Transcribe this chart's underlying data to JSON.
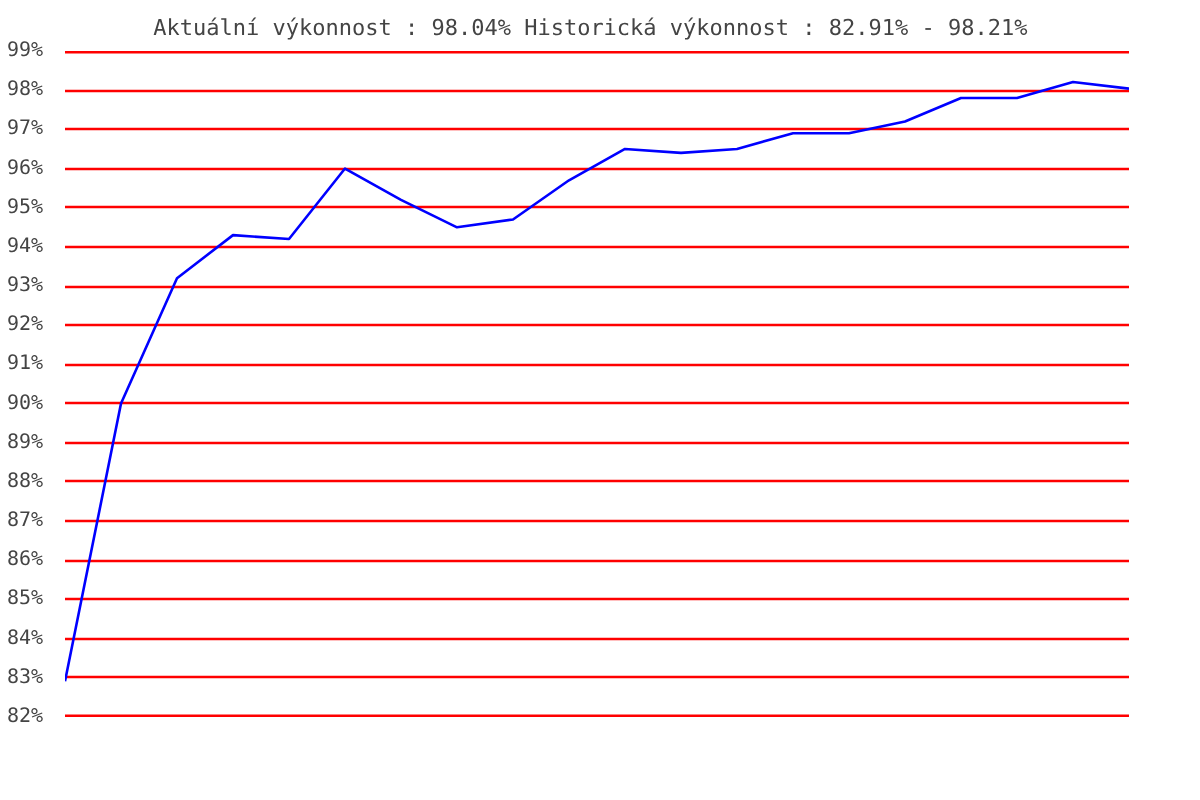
{
  "chart_data": {
    "type": "line",
    "title": "Aktuální výkonnost : 98.04%  Historická výkonnost : 82.91% - 98.21%",
    "categories": [
      null,
      null,
      null,
      null,
      null,
      null,
      null,
      null,
      null,
      null,
      null,
      null,
      null,
      null,
      null,
      null,
      null,
      null,
      null,
      null
    ],
    "series": [
      {
        "color": "#0000ff",
        "values": [
          82.91,
          90.0,
          93.2,
          94.3,
          94.2,
          96.0,
          95.2,
          94.5,
          94.7,
          95.7,
          96.5,
          96.4,
          96.5,
          96.9,
          96.9,
          97.2,
          97.8,
          97.8,
          98.21,
          98.04
        ]
      }
    ],
    "ylim": [
      82,
      99
    ],
    "yticks": [
      {
        "value": 82,
        "label": "82%"
      },
      {
        "value": 83,
        "label": "83%"
      },
      {
        "value": 84,
        "label": "84%"
      },
      {
        "value": 85,
        "label": "85%"
      },
      {
        "value": 86,
        "label": "86%"
      },
      {
        "value": 87,
        "label": "87%"
      },
      {
        "value": 88,
        "label": "88%"
      },
      {
        "value": 89,
        "label": "89%"
      },
      {
        "value": 90,
        "label": "90%"
      },
      {
        "value": 91,
        "label": "91%"
      },
      {
        "value": 92,
        "label": "92%"
      },
      {
        "value": 93,
        "label": "93%"
      },
      {
        "value": 94,
        "label": "94%"
      },
      {
        "value": 95,
        "label": "95%"
      },
      {
        "value": 96,
        "label": "96%"
      },
      {
        "value": 97,
        "label": "97%"
      },
      {
        "value": 98,
        "label": "98%"
      },
      {
        "value": 99,
        "label": "99%"
      }
    ],
    "grid": "y",
    "marker": "none",
    "line_style": "solid",
    "tick_labels": "y"
  }
}
